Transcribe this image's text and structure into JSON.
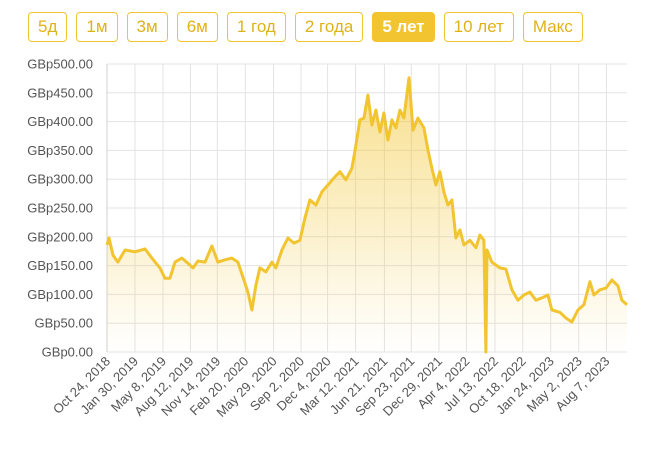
{
  "range_buttons": [
    "5д",
    "1м",
    "3м",
    "6м",
    "1 год",
    "2 года",
    "5 лет",
    "10 лет",
    "Макс"
  ],
  "selected_range": 6,
  "chart_data": {
    "type": "area-line",
    "color": "#f2c530",
    "grid": true,
    "xlim": [
      "2018-10-24",
      "2023-10-18"
    ],
    "ylim": [
      0,
      500
    ],
    "yticks": [
      {
        "value": 0,
        "label": "GBp0.00"
      },
      {
        "value": 50,
        "label": "GBp50.00"
      },
      {
        "value": 100,
        "label": "GBp100.00"
      },
      {
        "value": 150,
        "label": "GBp150.00"
      },
      {
        "value": 200,
        "label": "GBp200.00"
      },
      {
        "value": 250,
        "label": "GBp250.00"
      },
      {
        "value": 300,
        "label": "GBp300.00"
      },
      {
        "value": 350,
        "label": "GBp350.00"
      },
      {
        "value": 400,
        "label": "GBp400.00"
      },
      {
        "value": 450,
        "label": "GBp450.00"
      },
      {
        "value": 500,
        "label": "GBp500.00"
      }
    ],
    "xticks": [
      {
        "value": "2018-10-24",
        "label": "Oct 24, 2018"
      },
      {
        "value": "2019-01-30",
        "label": "Jan 30, 2019"
      },
      {
        "value": "2019-05-08",
        "label": "May 8, 2019"
      },
      {
        "value": "2019-08-12",
        "label": "Aug 12, 2019"
      },
      {
        "value": "2019-11-14",
        "label": "Nov 14, 2019"
      },
      {
        "value": "2020-02-20",
        "label": "Feb 20, 2020"
      },
      {
        "value": "2020-05-29",
        "label": "May 29, 2020"
      },
      {
        "value": "2020-09-02",
        "label": "Sep 2, 2020"
      },
      {
        "value": "2020-12-04",
        "label": "Dec 4, 2020"
      },
      {
        "value": "2021-03-12",
        "label": "Mar 12, 2021"
      },
      {
        "value": "2021-06-21",
        "label": "Jun 21, 2021"
      },
      {
        "value": "2021-09-23",
        "label": "Sep 23, 2021"
      },
      {
        "value": "2021-12-29",
        "label": "Dec 29, 2021"
      },
      {
        "value": "2022-04-04",
        "label": "Apr 4, 2022"
      },
      {
        "value": "2022-07-13",
        "label": "Jul 13, 2022"
      },
      {
        "value": "2022-10-18",
        "label": "Oct 18, 2022"
      },
      {
        "value": "2023-01-24",
        "label": "Jan 24, 2023"
      },
      {
        "value": "2023-05-02",
        "label": "May 2, 2023"
      },
      {
        "value": "2023-08-07",
        "label": "Aug 7, 2023"
      }
    ],
    "x": [
      "2018-10-24",
      "2018-10-31",
      "2018-11-14",
      "2018-12-01",
      "2018-12-26",
      "2019-01-30",
      "2019-03-06",
      "2019-03-30",
      "2019-04-27",
      "2019-05-15",
      "2019-06-01",
      "2019-06-19",
      "2019-07-13",
      "2019-08-03",
      "2019-08-21",
      "2019-09-07",
      "2019-10-02",
      "2019-10-26",
      "2019-11-16",
      "2019-12-11",
      "2020-01-04",
      "2020-01-25",
      "2020-02-15",
      "2020-02-29",
      "2020-03-14",
      "2020-03-28",
      "2020-04-11",
      "2020-05-02",
      "2020-05-23",
      "2020-06-06",
      "2020-06-27",
      "2020-07-18",
      "2020-08-08",
      "2020-08-29",
      "2020-09-16",
      "2020-10-03",
      "2020-10-24",
      "2020-11-14",
      "2020-12-05",
      "2020-12-26",
      "2021-01-16",
      "2021-02-06",
      "2021-02-27",
      "2021-03-13",
      "2021-03-27",
      "2021-04-10",
      "2021-04-24",
      "2021-05-08",
      "2021-05-22",
      "2021-06-05",
      "2021-06-19",
      "2021-07-03",
      "2021-07-17",
      "2021-07-31",
      "2021-08-14",
      "2021-08-28",
      "2021-09-15",
      "2021-09-29",
      "2021-10-16",
      "2021-11-06",
      "2021-11-20",
      "2021-12-04",
      "2021-12-18",
      "2022-01-01",
      "2022-01-15",
      "2022-01-29",
      "2022-02-12",
      "2022-02-26",
      "2022-03-12",
      "2022-03-26",
      "2022-04-16",
      "2022-05-07",
      "2022-05-21",
      "2022-06-04",
      "2022-06-11",
      "2022-06-15",
      "2022-07-02",
      "2022-07-30",
      "2022-08-20",
      "2022-09-10",
      "2022-10-01",
      "2022-10-22",
      "2022-11-12",
      "2022-12-03",
      "2022-12-24",
      "2023-01-14",
      "2023-01-28",
      "2023-02-25",
      "2023-03-18",
      "2023-04-08",
      "2023-04-29",
      "2023-05-20",
      "2023-06-10",
      "2023-06-24",
      "2023-07-15",
      "2023-08-05",
      "2023-08-26",
      "2023-09-16",
      "2023-09-30",
      "2023-10-18"
    ],
    "values": [
      186,
      198,
      168,
      156,
      177,
      174,
      179,
      163,
      146,
      128,
      128,
      156,
      163,
      154,
      146,
      158,
      156,
      184,
      156,
      160,
      163,
      156,
      125,
      104,
      73,
      116,
      146,
      139,
      156,
      146,
      177,
      198,
      189,
      194,
      233,
      264,
      255,
      278,
      290,
      302,
      313,
      299,
      319,
      359,
      403,
      406,
      446,
      394,
      420,
      382,
      415,
      368,
      403,
      389,
      420,
      406,
      476,
      385,
      406,
      389,
      351,
      319,
      290,
      313,
      278,
      255,
      264,
      198,
      212,
      186,
      194,
      181,
      203,
      194,
      0,
      177,
      156,
      146,
      144,
      108,
      90,
      99,
      104,
      90,
      94,
      99,
      73,
      69,
      59,
      52,
      73,
      82,
      122,
      99,
      108,
      111,
      125,
      115,
      90,
      82
    ]
  }
}
